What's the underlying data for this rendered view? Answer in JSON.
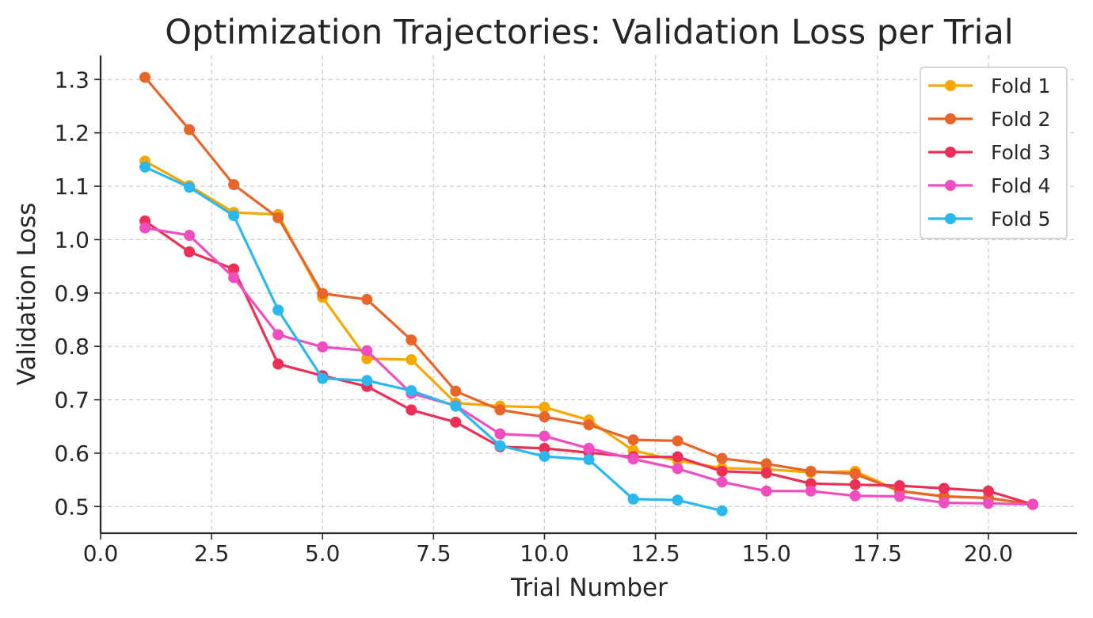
{
  "chart_data": {
    "type": "line",
    "title": "Optimization Trajectories: Validation Loss per Trial",
    "xlabel": "Trial Number",
    "ylabel": "Validation Loss",
    "xlim": [
      0,
      22
    ],
    "ylim": [
      0.45,
      1.345
    ],
    "x_ticks": [
      0,
      2.5,
      5,
      7.5,
      10,
      12.5,
      15,
      17.5,
      20
    ],
    "x_tick_labels": [
      "0.0",
      "2.5",
      "5.0",
      "7.5",
      "10.0",
      "12.5",
      "15.0",
      "17.5",
      "20.0"
    ],
    "y_ticks": [
      0.5,
      0.6,
      0.7,
      0.8,
      0.9,
      1.0,
      1.1,
      1.2,
      1.3
    ],
    "y_tick_labels": [
      "0.5",
      "0.6",
      "0.7",
      "0.8",
      "0.9",
      "1.0",
      "1.1",
      "1.2",
      "1.3"
    ],
    "grid": true,
    "legend_position": "top-right",
    "series": [
      {
        "name": "Fold 1",
        "color": "#F5A800",
        "x": [
          1,
          2,
          3,
          4,
          5,
          6,
          7,
          8,
          9,
          10,
          11,
          12,
          13,
          14,
          15,
          16,
          17,
          18,
          19,
          20,
          21
        ],
        "values": [
          1.147,
          1.101,
          1.051,
          1.047,
          0.892,
          0.777,
          0.775,
          0.694,
          0.688,
          0.686,
          0.662,
          0.605,
          0.586,
          0.572,
          0.57,
          0.564,
          0.566,
          0.529,
          0.519,
          0.516,
          0.504
        ]
      },
      {
        "name": "Fold 2",
        "color": "#E8652A",
        "x": [
          1,
          2,
          3,
          4,
          5,
          6,
          7,
          8,
          9,
          10,
          11,
          12,
          13,
          14,
          15,
          16,
          17,
          18,
          19,
          20,
          21
        ],
        "values": [
          1.304,
          1.206,
          1.103,
          1.041,
          0.899,
          0.888,
          0.812,
          0.716,
          0.681,
          0.668,
          0.653,
          0.625,
          0.623,
          0.59,
          0.58,
          0.566,
          0.561,
          0.529,
          0.519,
          0.516,
          0.504
        ]
      },
      {
        "name": "Fold 3",
        "color": "#EE2F55",
        "x": [
          1,
          2,
          3,
          4,
          5,
          6,
          7,
          8,
          9,
          10,
          11,
          12,
          13,
          14,
          15,
          16,
          17,
          18,
          19,
          20,
          21
        ],
        "values": [
          1.035,
          0.977,
          0.945,
          0.767,
          0.745,
          0.725,
          0.681,
          0.658,
          0.612,
          0.609,
          0.601,
          0.593,
          0.593,
          0.566,
          0.563,
          0.543,
          0.541,
          0.539,
          0.534,
          0.529,
          0.504
        ]
      },
      {
        "name": "Fold 4",
        "color": "#F04EBF",
        "x": [
          1,
          2,
          3,
          4,
          5,
          6,
          7,
          8,
          9,
          10,
          11,
          12,
          13,
          14,
          15,
          16,
          17,
          18,
          19,
          20,
          21
        ],
        "values": [
          1.022,
          1.008,
          0.929,
          0.822,
          0.799,
          0.792,
          0.712,
          0.689,
          0.636,
          0.632,
          0.609,
          0.589,
          0.571,
          0.546,
          0.529,
          0.529,
          0.52,
          0.519,
          0.507,
          0.506,
          0.504
        ]
      },
      {
        "name": "Fold 5",
        "color": "#2BB7F0",
        "x": [
          1,
          2,
          3,
          4,
          5,
          6,
          7,
          8,
          9,
          10,
          11,
          12,
          13,
          14
        ],
        "values": [
          1.136,
          1.098,
          1.045,
          0.868,
          0.74,
          0.736,
          0.717,
          0.688,
          0.614,
          0.594,
          0.588,
          0.514,
          0.512,
          0.492
        ]
      }
    ]
  }
}
